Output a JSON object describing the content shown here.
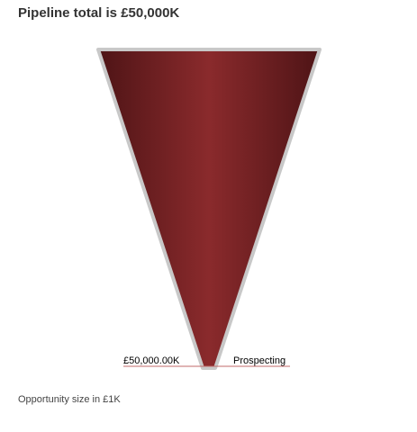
{
  "chart_data": {
    "type": "funnel",
    "title": "Pipeline total is £50,000K",
    "stages": [
      {
        "name": "Prospecting",
        "value": 50000,
        "value_label": "£50,000.00K"
      }
    ],
    "footnote": "Opportunity size in £1K",
    "colors": {
      "fill_dark": "#4e1416",
      "fill_mid": "#8a2a2c",
      "outline": "#c8c8c8",
      "leader_line": "#c06a6a"
    }
  }
}
